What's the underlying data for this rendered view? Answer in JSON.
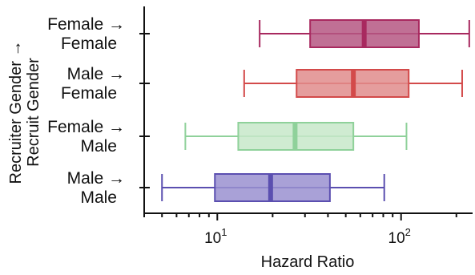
{
  "chart_data": {
    "type": "box",
    "xlabel": "Hazard Ratio",
    "ylabel_lines": [
      "Recruiter Gender →",
      "Recruit Gender"
    ],
    "x_scale": "log",
    "xlim": [
      4.0,
      250
    ],
    "x_ticks": [
      {
        "value": 10,
        "base": "10",
        "exponent": "1"
      },
      {
        "value": 100,
        "base": "10",
        "exponent": "2"
      }
    ],
    "categories": [
      {
        "line1": "Female →",
        "line2": "Female",
        "whisker_low": 17,
        "q1": 32,
        "median": 63,
        "q3": 125,
        "whisker_high": 235,
        "color": "#a8295f",
        "fill": "#b55782"
      },
      {
        "line1": "Male →",
        "line2": "Female",
        "whisker_low": 14,
        "q1": 27,
        "median": 55,
        "q3": 110,
        "whisker_high": 215,
        "color": "#d34a4a",
        "fill": "#e18c8c"
      },
      {
        "line1": "Female →",
        "line2": "Male",
        "whisker_low": 6.7,
        "q1": 13,
        "median": 26.5,
        "q3": 55,
        "whisker_high": 107,
        "color": "#8fd19a",
        "fill": "#c7e8c9"
      },
      {
        "line1": "Male →",
        "line2": "Male",
        "whisker_low": 5,
        "q1": 9.7,
        "median": 19.5,
        "q3": 41,
        "whisker_high": 81,
        "color": "#5b4fb0",
        "fill": "#9a91d0"
      }
    ]
  }
}
